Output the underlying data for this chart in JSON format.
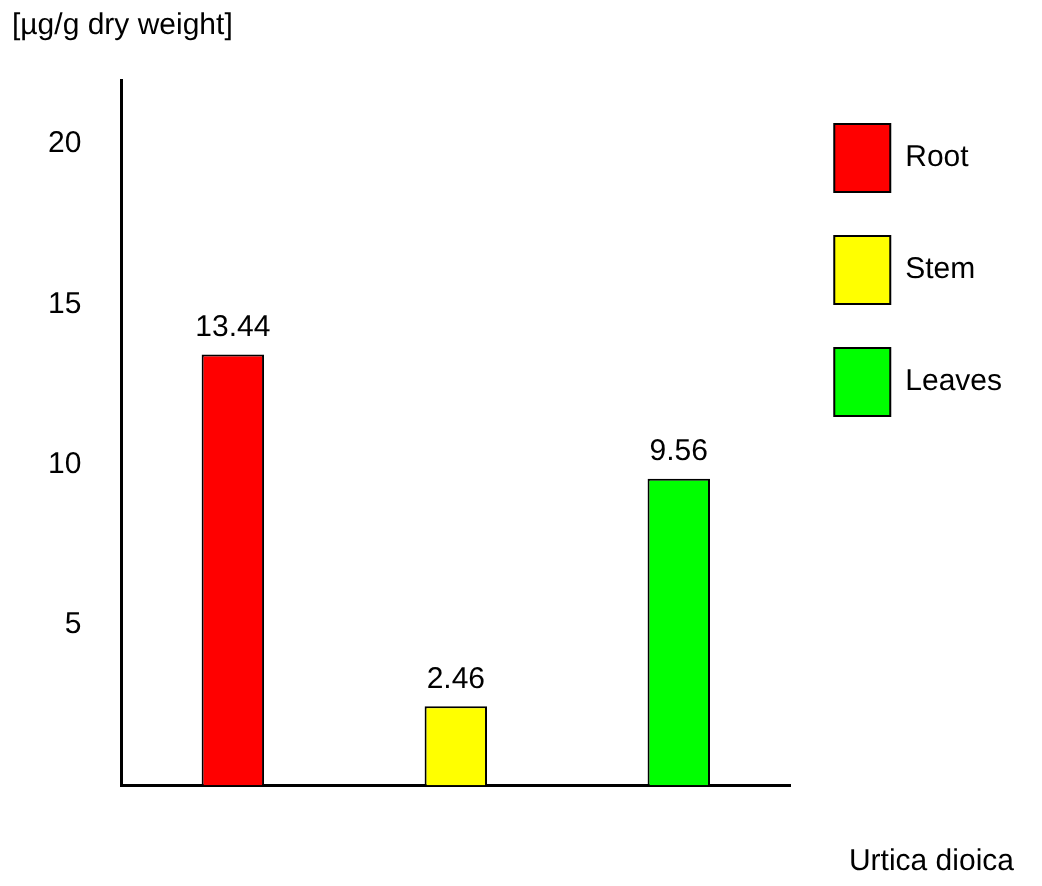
{
  "chart_data": {
    "type": "bar",
    "ylabel": "[µg/g dry weight]",
    "xlabel": "Urtica dioica",
    "categories": [
      null,
      null,
      null
    ],
    "series": [
      {
        "name": "Root",
        "color": "#ff0000",
        "values": [
          13.44,
          null,
          null
        ]
      },
      {
        "name": "Stem",
        "color": "#ffff00",
        "values": [
          null,
          2.46,
          null
        ]
      },
      {
        "name": "Leaves",
        "color": "#00ff00",
        "values": [
          null,
          null,
          9.56
        ]
      }
    ],
    "ylim": [
      0,
      22
    ],
    "yticks": [
      5,
      10,
      15,
      20
    ],
    "grid": false,
    "legend": "top right",
    "data_labels": true
  }
}
